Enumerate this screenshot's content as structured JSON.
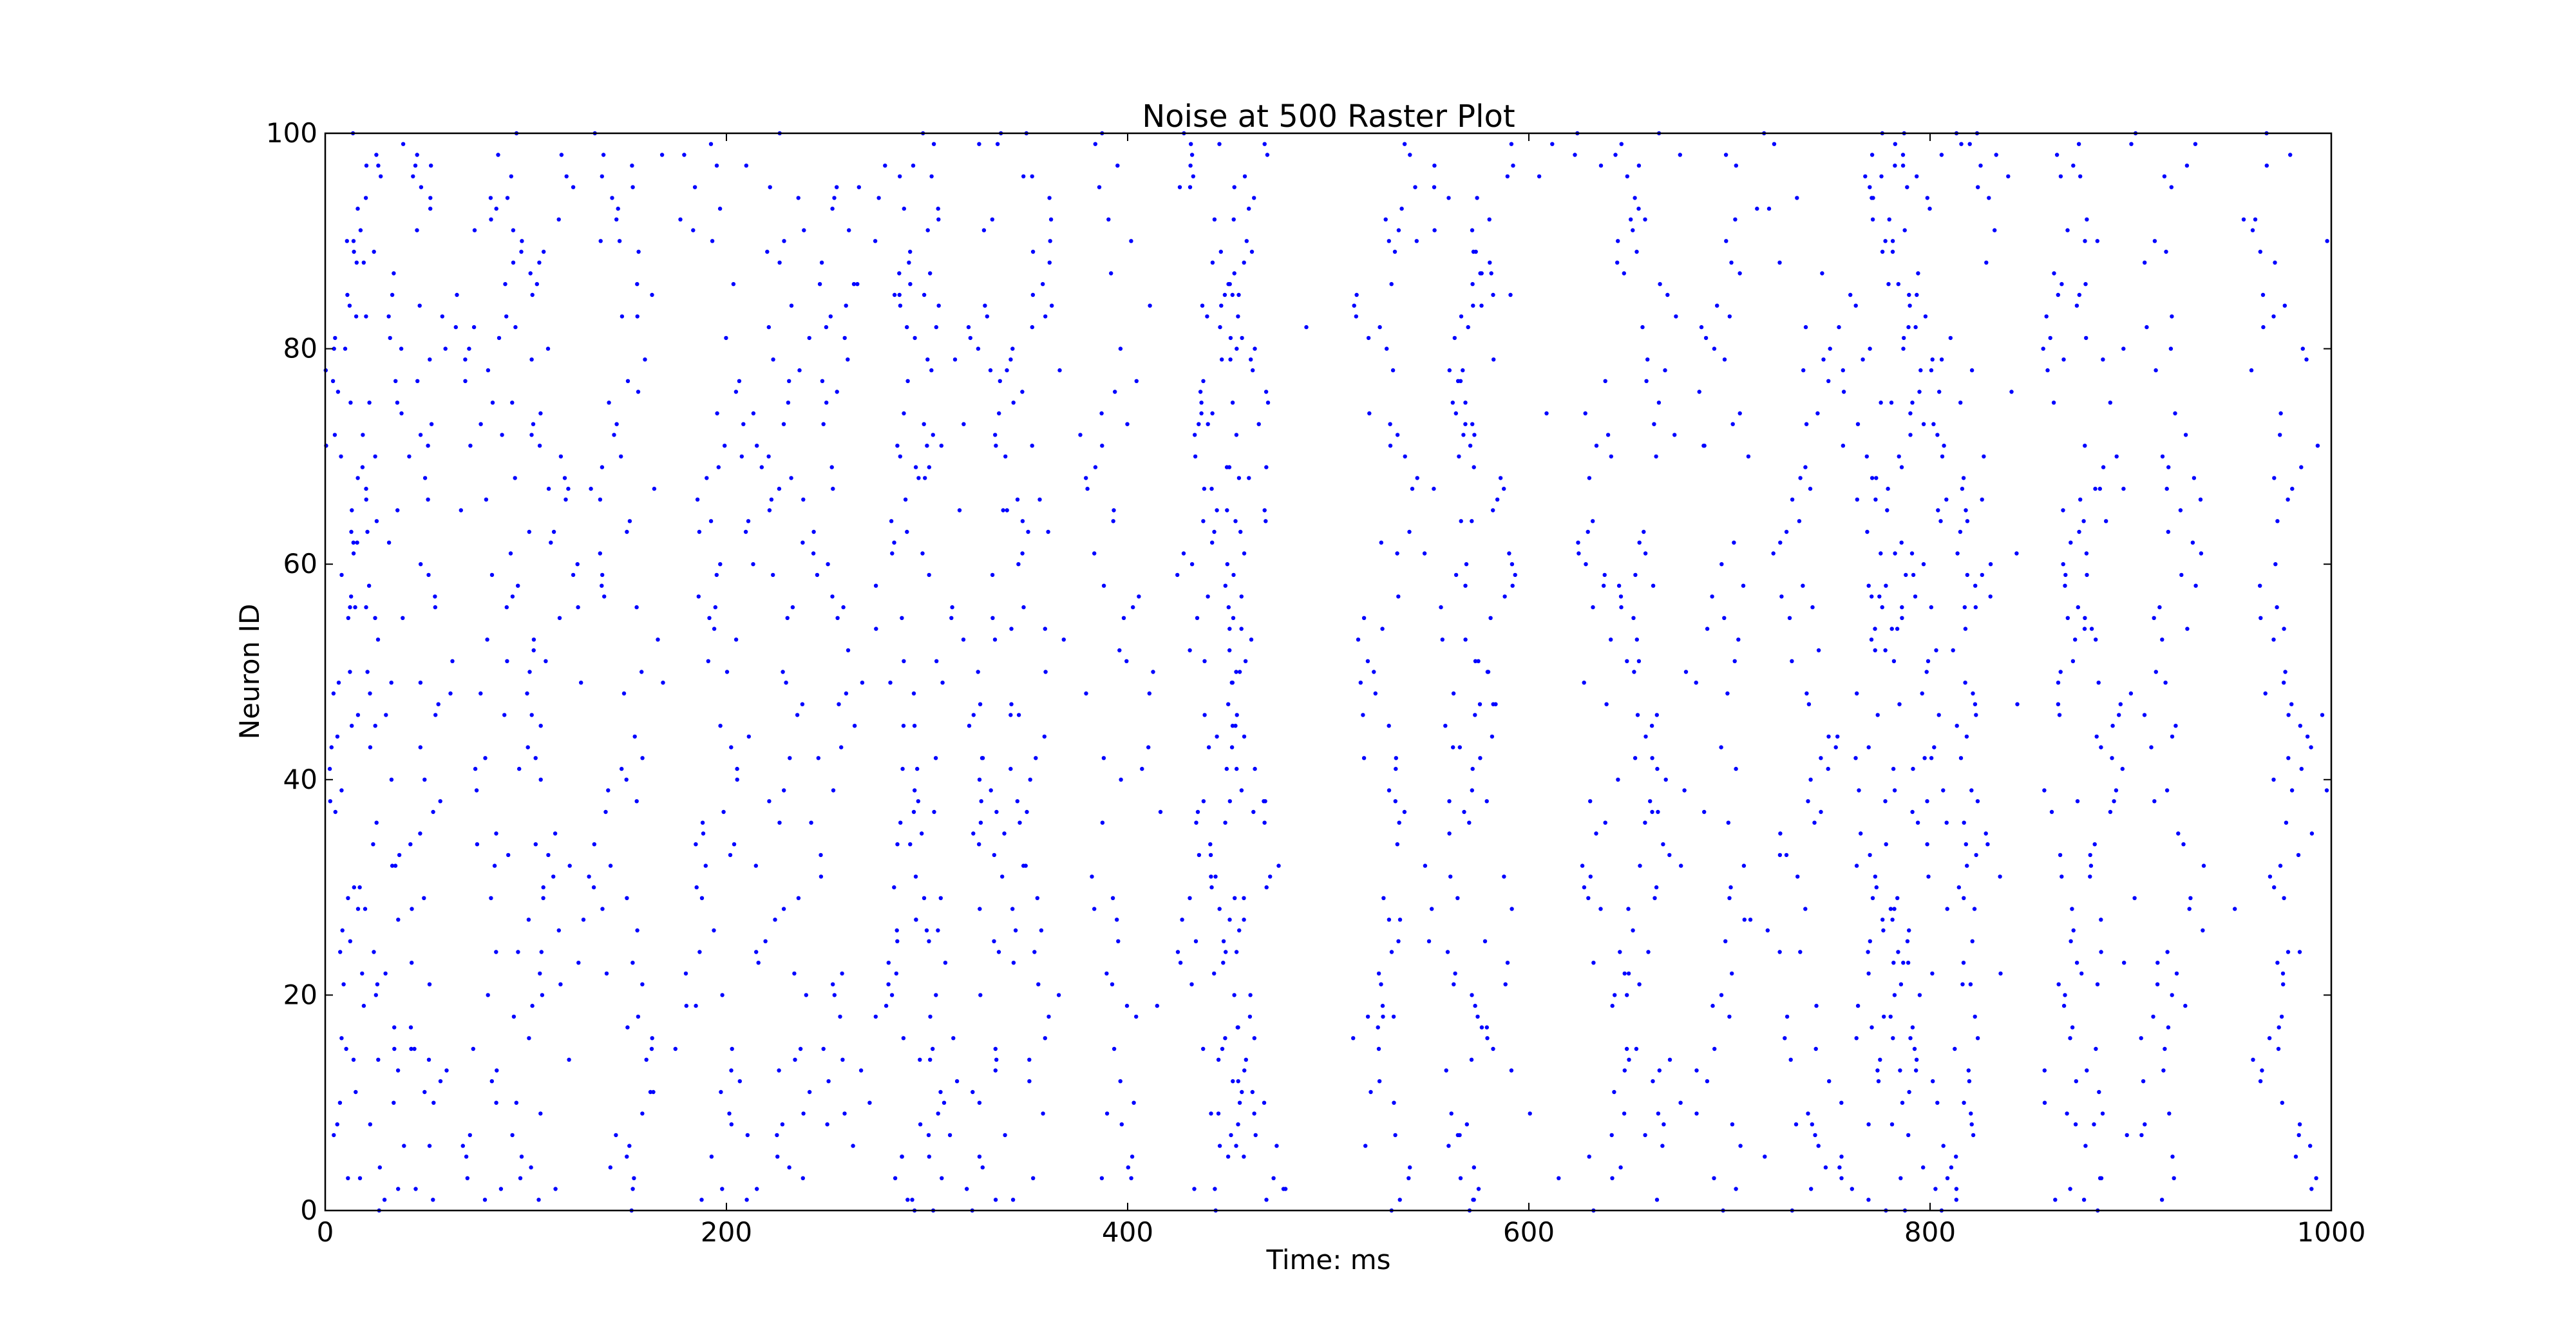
{
  "chart_data": {
    "type": "scatter",
    "title": "Noise at 500 Raster Plot",
    "xlabel": "Time: ms",
    "ylabel": "Neuron ID",
    "xlim": [
      0,
      1000
    ],
    "ylim": [
      0,
      100
    ],
    "x_ticks": [
      "0",
      "200",
      "400",
      "600",
      "800",
      "1000"
    ],
    "y_ticks": [
      "0",
      "20",
      "40",
      "60",
      "80",
      "100"
    ],
    "grid": false,
    "marker_color": "#0000ff",
    "series": [
      {
        "style": "dots",
        "band_centers_ms": [
          10,
          25,
          50,
          85,
          110,
          150,
          195,
          225,
          250,
          290,
          300,
          330,
          350,
          395,
          440,
          450,
          460,
          530,
          565,
          575,
          640,
          660,
          700,
          735,
          770,
          785,
          800,
          820,
          870,
          880,
          920,
          975
        ]
      }
    ]
  }
}
